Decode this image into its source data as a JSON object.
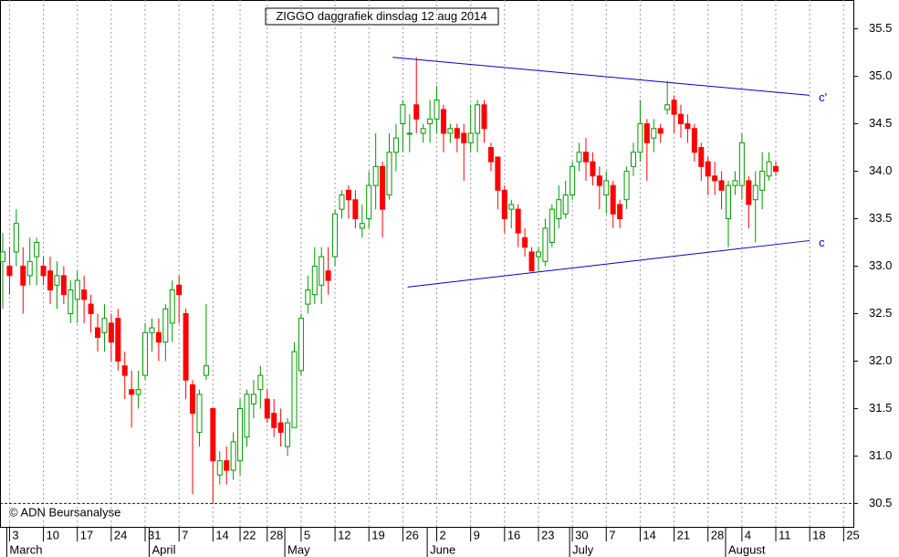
{
  "chart_data": {
    "type": "candlestick",
    "title": "ZIGGO daggrafiek dinsdag 12 aug 2014",
    "copyright": "© ADN Beursanalyse",
    "up_color": "#009900",
    "down_color": "#ff0000",
    "line_color": "#0000cc",
    "ylim": [
      30.1,
      35.65
    ],
    "yticks": [
      30.5,
      {
        "value": 31,
        "label": "31.0"
      },
      31.5,
      32,
      {
        "value": 32,
        "label": "32.0"
      },
      32.5,
      {
        "value": 33,
        "label": "33.0"
      },
      33.5,
      {
        "value": 34,
        "label": "34.0"
      },
      34.5,
      {
        "value": 35,
        "label": "35.0"
      },
      35.5
    ],
    "categories": [
      null,
      "3",
      null,
      null,
      null,
      null,
      "10",
      null,
      null,
      null,
      null,
      "17",
      null,
      null,
      null,
      null,
      "24",
      null,
      null,
      null,
      null,
      "31",
      null,
      null,
      null,
      null,
      "7",
      null,
      null,
      null,
      null,
      "14",
      null,
      null,
      null,
      "22",
      null,
      null,
      null,
      "28",
      null,
      null,
      null,
      null,
      "5",
      null,
      null,
      null,
      null,
      "12",
      null,
      null,
      null,
      null,
      "19",
      null,
      null,
      null,
      null,
      "26",
      null,
      null,
      null,
      null,
      "2",
      null,
      null,
      null,
      null,
      "9",
      null,
      null,
      null,
      null,
      "16",
      null,
      null,
      null,
      null,
      "23",
      null,
      null,
      null,
      null,
      "30",
      null,
      null,
      null,
      null,
      "7",
      null,
      null,
      null,
      null,
      "14",
      null,
      null,
      null,
      null,
      "21",
      null,
      null,
      null,
      null,
      "28",
      null,
      null,
      null,
      null,
      "4",
      null,
      null,
      null,
      null,
      "11",
      null,
      null,
      null,
      null,
      "18",
      null,
      null,
      null,
      null,
      "25",
      null,
      null,
      null,
      null
    ],
    "months": [
      null,
      "March",
      null,
      null,
      null,
      null,
      null,
      null,
      null,
      null,
      null,
      null,
      null,
      null,
      null,
      null,
      null,
      null,
      null,
      null,
      null,
      null,
      "April",
      null,
      null,
      null,
      null,
      null,
      null,
      null,
      null,
      null,
      null,
      null,
      null,
      null,
      null,
      null,
      null,
      null,
      null,
      null,
      "May",
      null,
      null,
      null,
      null,
      null,
      null,
      null,
      null,
      null,
      null,
      null,
      null,
      null,
      null,
      null,
      null,
      null,
      null,
      null,
      null,
      "June",
      null,
      null,
      null,
      null,
      null,
      null,
      null,
      null,
      null,
      null,
      null,
      null,
      null,
      null,
      null,
      null,
      null,
      null,
      null,
      null,
      "July",
      null,
      null,
      null,
      null,
      null,
      null,
      null,
      null,
      null,
      null,
      null,
      null,
      null,
      null,
      null,
      null,
      null,
      null,
      null,
      null,
      null,
      null,
      "August",
      null,
      null,
      null,
      null,
      null,
      null,
      null,
      null,
      null,
      null,
      null,
      null,
      null,
      null,
      null,
      null,
      null,
      null,
      null,
      null
    ],
    "open": [
      33.05,
      33.0,
      33.15,
      33.0,
      32.9,
      33.1,
      33.0,
      32.95,
      32.8,
      32.9,
      32.5,
      32.65,
      32.75,
      32.6,
      32.35,
      32.3,
      32.4,
      32.45,
      31.95,
      31.7,
      31.65,
      31.85,
      32.3,
      32.3,
      32.2,
      32.4,
      32.8,
      32.5,
      31.75,
      31.25,
      31.85,
      31.5,
      30.8,
      30.95,
      30.85,
      30.95,
      31.2,
      31.55,
      31.7,
      31.6,
      31.45,
      31.35,
      31.1,
      31.3,
      31.9,
      32.6,
      32.7,
      32.8,
      32.95,
      33.1,
      33.6,
      33.8,
      33.7,
      33.4,
      33.5,
      33.85,
      34.05,
      33.75,
      34.2,
      34.5,
      34.4,
      34.7,
      34.4,
      34.5,
      34.55,
      34.65,
      34.4,
      34.45,
      34.4,
      34.3,
      34.4,
      34.7,
      34.25,
      34.15,
      33.8,
      33.6,
      33.6,
      33.3,
      33.15,
      33.1,
      33.05,
      33.25,
      33.5,
      33.55,
      33.75,
      34.1,
      34.2,
      34.1,
      33.95,
      33.75,
      33.85,
      33.65,
      33.7,
      34.05,
      34.2,
      34.5,
      34.35,
      34.45,
      34.65,
      34.75,
      34.6,
      34.5,
      34.45,
      34.25,
      34.1,
      33.95,
      33.9,
      33.5,
      33.85,
      33.85,
      33.9,
      33.7,
      33.8,
      33.95,
      34.05,
      null,
      null,
      null,
      null,
      null,
      null,
      null,
      null,
      null,
      null,
      null,
      null,
      null
    ],
    "high": [
      33.35,
      33.2,
      33.6,
      33.2,
      33.3,
      33.3,
      33.1,
      33.1,
      33.05,
      33.0,
      32.85,
      32.95,
      32.9,
      32.7,
      32.5,
      32.6,
      32.5,
      32.55,
      32.1,
      31.9,
      31.9,
      32.4,
      32.45,
      32.45,
      32.6,
      32.85,
      32.9,
      32.55,
      31.8,
      31.7,
      32.6,
      31.5,
      31.05,
      31.1,
      31.25,
      31.6,
      31.7,
      31.8,
      31.95,
      31.7,
      31.6,
      31.5,
      31.4,
      32.2,
      32.5,
      32.9,
      33.2,
      33.2,
      33.2,
      33.6,
      33.8,
      33.85,
      33.8,
      33.65,
      34.0,
      34.4,
      34.1,
      34.4,
      34.5,
      34.75,
      34.6,
      35.2,
      34.5,
      34.75,
      34.9,
      34.7,
      34.5,
      34.5,
      34.5,
      34.7,
      34.75,
      34.75,
      34.3,
      34.15,
      33.85,
      33.7,
      33.65,
      33.4,
      33.2,
      33.2,
      33.5,
      33.65,
      33.85,
      33.9,
      34.1,
      34.3,
      34.35,
      34.2,
      34.05,
      34.0,
      33.9,
      33.7,
      34.05,
      34.3,
      34.75,
      34.55,
      34.55,
      34.5,
      34.95,
      34.8,
      34.7,
      34.6,
      34.5,
      34.3,
      34.15,
      34.1,
      34.0,
      33.9,
      34.0,
      34.4,
      33.95,
      34.0,
      34.2,
      34.2,
      34.1,
      null,
      null,
      null,
      null,
      null,
      null,
      null,
      null,
      null,
      null,
      null,
      null,
      null
    ],
    "low": [
      32.55,
      32.7,
      33.0,
      32.5,
      32.8,
      32.8,
      32.8,
      32.6,
      32.55,
      32.6,
      32.4,
      32.4,
      32.4,
      32.3,
      32.1,
      32.1,
      32.0,
      31.9,
      31.6,
      31.3,
      31.5,
      31.8,
      32.1,
      32.0,
      32.0,
      32.2,
      32.4,
      31.6,
      30.6,
      31.1,
      31.8,
      30.5,
      30.7,
      30.7,
      30.75,
      30.8,
      31.1,
      31.4,
      31.5,
      31.35,
      31.2,
      31.1,
      31.0,
      31.3,
      31.85,
      32.5,
      32.6,
      32.6,
      32.7,
      33.0,
      33.5,
      33.5,
      33.4,
      33.3,
      33.4,
      33.6,
      33.3,
      33.7,
      34.0,
      34.2,
      34.2,
      34.4,
      34.3,
      34.3,
      34.4,
      34.2,
      34.3,
      34.2,
      33.9,
      34.2,
      34.2,
      34.3,
      34.0,
      33.6,
      33.35,
      33.4,
      33.2,
      33.1,
      32.95,
      32.95,
      33.0,
      33.2,
      33.4,
      33.5,
      33.7,
      34.0,
      33.9,
      33.85,
      33.6,
      33.55,
      33.4,
      33.4,
      33.6,
      33.95,
      34.1,
      33.9,
      34.2,
      34.3,
      34.6,
      34.4,
      34.35,
      34.3,
      34.1,
      33.9,
      33.75,
      33.75,
      33.6,
      33.2,
      33.75,
      33.7,
      33.4,
      33.25,
      33.6,
      33.9,
      33.95,
      null,
      null,
      null,
      null,
      null,
      null,
      null,
      null,
      null,
      null,
      null,
      null,
      null
    ],
    "close": [
      33.15,
      32.9,
      33.45,
      32.8,
      33.05,
      33.25,
      32.9,
      32.75,
      32.9,
      32.7,
      32.75,
      32.85,
      32.65,
      32.5,
      32.25,
      32.45,
      32.2,
      32.0,
      31.85,
      31.65,
      31.7,
      32.3,
      32.35,
      32.2,
      32.55,
      32.75,
      32.7,
      31.8,
      31.45,
      31.65,
      31.95,
      30.95,
      30.95,
      30.85,
      31.15,
      31.5,
      31.65,
      31.65,
      31.85,
      31.4,
      31.3,
      31.25,
      31.35,
      32.1,
      32.45,
      32.75,
      33.0,
      33.1,
      32.85,
      33.55,
      33.75,
      33.7,
      33.5,
      33.45,
      33.85,
      34.05,
      33.6,
      34.2,
      34.35,
      34.7,
      34.4,
      34.55,
      34.45,
      34.55,
      34.75,
      34.4,
      34.45,
      34.35,
      34.3,
      34.4,
      34.7,
      34.45,
      34.1,
      33.8,
      33.5,
      33.65,
      33.35,
      33.2,
      32.95,
      33.15,
      33.4,
      33.6,
      33.7,
      33.75,
      34.05,
      34.2,
      34.1,
      33.95,
      33.85,
      33.9,
      33.55,
      33.5,
      34.0,
      34.2,
      34.5,
      34.3,
      34.45,
      34.4,
      34.7,
      34.6,
      34.5,
      34.45,
      34.2,
      34.05,
      33.95,
      33.9,
      33.8,
      33.85,
      33.9,
      34.3,
      33.65,
      33.85,
      34.0,
      34.1,
      34.0,
      null,
      null,
      null,
      null,
      null,
      null,
      null,
      null,
      null,
      null,
      null,
      null,
      null
    ],
    "trendlines": [
      {
        "label": "c'",
        "x": [
          57.5,
          119
        ],
        "values": [
          35.2,
          34.8
        ]
      },
      {
        "label": "c",
        "x": [
          59.7,
          119
        ],
        "values": [
          32.78,
          33.27
        ]
      }
    ],
    "support_line": 30.5
  }
}
